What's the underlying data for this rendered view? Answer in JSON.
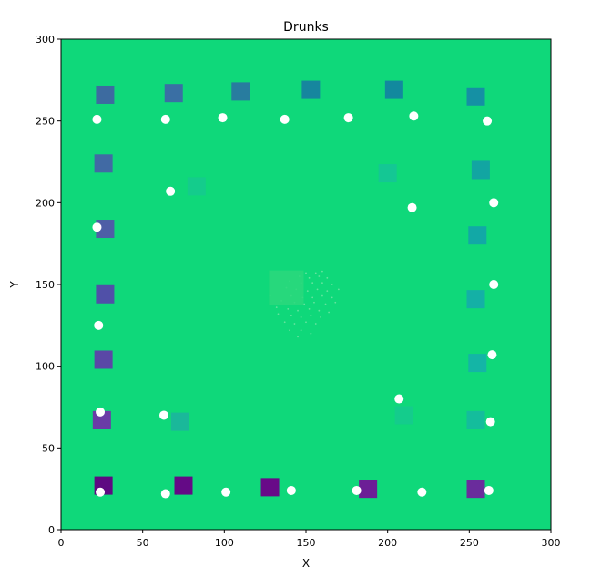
{
  "chart_data": {
    "type": "scatter",
    "title": "Drunks",
    "xlabel": "X",
    "ylabel": "Y",
    "xlim": [
      0,
      300
    ],
    "ylim": [
      0,
      300
    ],
    "xticks": [
      "0",
      "50",
      "100",
      "150",
      "200",
      "250",
      "300"
    ],
    "yticks": [
      "0",
      "50",
      "100",
      "150",
      "200",
      "250",
      "300"
    ],
    "grid": false,
    "legend": false,
    "background_color": "#0fd87a",
    "square_markers": [
      {
        "x": 27,
        "y": 266,
        "color": "#3d6ba0"
      },
      {
        "x": 69,
        "y": 267,
        "color": "#3a6fa4"
      },
      {
        "x": 110,
        "y": 268,
        "color": "#287c9f"
      },
      {
        "x": 153,
        "y": 269,
        "color": "#16869e"
      },
      {
        "x": 204,
        "y": 269,
        "color": "#12899e"
      },
      {
        "x": 254,
        "y": 265,
        "color": "#1590a4"
      },
      {
        "x": 26,
        "y": 224,
        "color": "#416aa4"
      },
      {
        "x": 83,
        "y": 210,
        "color": "#14cc8c"
      },
      {
        "x": 200,
        "y": 218,
        "color": "#14c794"
      },
      {
        "x": 257,
        "y": 220,
        "color": "#12a5a2"
      },
      {
        "x": 27,
        "y": 184,
        "color": "#4e5ea6"
      },
      {
        "x": 255,
        "y": 180,
        "color": "#12a8a6"
      },
      {
        "x": 27,
        "y": 144,
        "color": "#5050a8"
      },
      {
        "x": 254,
        "y": 141,
        "color": "#14b0a6"
      },
      {
        "x": 26,
        "y": 104,
        "color": "#5a48a6"
      },
      {
        "x": 255,
        "y": 102,
        "color": "#14b5a6"
      },
      {
        "x": 25,
        "y": 67,
        "color": "#6a3ca6"
      },
      {
        "x": 73,
        "y": 66,
        "color": "#1ab89a"
      },
      {
        "x": 210,
        "y": 70,
        "color": "#14cc8c"
      },
      {
        "x": 254,
        "y": 67,
        "color": "#14bd9c"
      },
      {
        "x": 26,
        "y": 27,
        "color": "#5e0a82"
      },
      {
        "x": 75,
        "y": 27,
        "color": "#640a86"
      },
      {
        "x": 128,
        "y": 26,
        "color": "#680a88"
      },
      {
        "x": 188,
        "y": 25,
        "color": "#6c1e96"
      },
      {
        "x": 254,
        "y": 25,
        "color": "#6a2c9c"
      }
    ],
    "highlight_square": {
      "x": 138,
      "y": 148,
      "color": "#2cd87c"
    },
    "points": [
      {
        "x": 22,
        "y": 251
      },
      {
        "x": 64,
        "y": 251
      },
      {
        "x": 99,
        "y": 252
      },
      {
        "x": 137,
        "y": 251
      },
      {
        "x": 176,
        "y": 252
      },
      {
        "x": 216,
        "y": 253
      },
      {
        "x": 261,
        "y": 250
      },
      {
        "x": 67,
        "y": 207
      },
      {
        "x": 215,
        "y": 197
      },
      {
        "x": 265,
        "y": 200
      },
      {
        "x": 22,
        "y": 185
      },
      {
        "x": 265,
        "y": 150
      },
      {
        "x": 23,
        "y": 125
      },
      {
        "x": 264,
        "y": 107
      },
      {
        "x": 207,
        "y": 80
      },
      {
        "x": 24,
        "y": 72
      },
      {
        "x": 63,
        "y": 70
      },
      {
        "x": 263,
        "y": 66
      },
      {
        "x": 24,
        "y": 23
      },
      {
        "x": 64,
        "y": 22
      },
      {
        "x": 101,
        "y": 23
      },
      {
        "x": 141,
        "y": 24
      },
      {
        "x": 181,
        "y": 24
      },
      {
        "x": 221,
        "y": 23
      },
      {
        "x": 262,
        "y": 24
      }
    ],
    "point_color": "#ffffff",
    "faint_dots": [
      [
        150,
        157
      ],
      [
        156,
        157
      ],
      [
        160,
        158
      ],
      [
        146,
        155
      ],
      [
        152,
        154
      ],
      [
        158,
        155
      ],
      [
        163,
        154
      ],
      [
        140,
        152
      ],
      [
        147,
        151
      ],
      [
        154,
        151
      ],
      [
        160,
        151
      ],
      [
        166,
        150
      ],
      [
        138,
        148
      ],
      [
        144,
        147
      ],
      [
        151,
        146
      ],
      [
        157,
        147
      ],
      [
        163,
        146
      ],
      [
        170,
        147
      ],
      [
        141,
        143
      ],
      [
        148,
        142
      ],
      [
        154,
        142
      ],
      [
        160,
        143
      ],
      [
        166,
        142
      ],
      [
        135,
        140
      ],
      [
        143,
        139
      ],
      [
        149,
        138
      ],
      [
        155,
        139
      ],
      [
        162,
        138
      ],
      [
        139,
        135
      ],
      [
        145,
        134
      ],
      [
        152,
        135
      ],
      [
        158,
        134
      ],
      [
        133,
        132
      ],
      [
        141,
        131
      ],
      [
        147,
        130
      ],
      [
        153,
        131
      ],
      [
        159,
        130
      ],
      [
        137,
        127
      ],
      [
        143,
        126
      ],
      [
        150,
        127
      ],
      [
        156,
        126
      ],
      [
        140,
        122
      ],
      [
        147,
        122
      ],
      [
        145,
        118
      ],
      [
        153,
        120
      ],
      [
        132,
        136
      ],
      [
        128,
        143
      ],
      [
        168,
        139
      ],
      [
        164,
        133
      ]
    ]
  }
}
